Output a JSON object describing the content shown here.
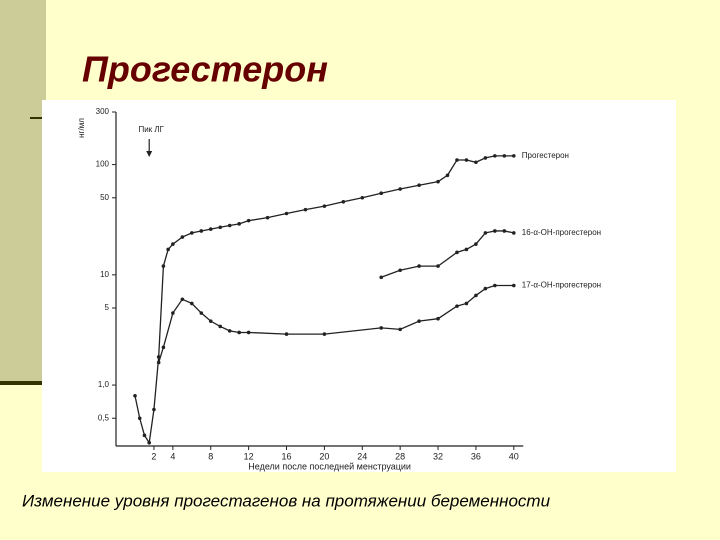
{
  "slide": {
    "title": "Прогестерон",
    "caption": "Изменение уровня прогестагенов на протяжении беременности"
  },
  "chart_data": {
    "type": "line",
    "y_label": "нг/мл",
    "x_label": "Недели после последней менструации",
    "annotation": {
      "text": "Пик ЛГ",
      "x": 1.5
    },
    "yscale": "log",
    "ylim": [
      0.28,
      300
    ],
    "yticks": [
      300,
      100,
      50,
      10,
      5,
      {
        "value": 1,
        "label": "1,0"
      },
      {
        "value": 0.5,
        "label": "0,5"
      }
    ],
    "xlim": [
      0,
      41
    ],
    "xticks": [
      2,
      4,
      8,
      12,
      16,
      20,
      24,
      28,
      32,
      36,
      40
    ],
    "series": [
      {
        "name": "Прогестерон",
        "color": "#222222",
        "x": [
          0,
          0.5,
          1,
          1.5,
          2,
          2.5,
          3,
          3.5,
          4,
          5,
          6,
          7,
          8,
          9,
          10,
          11,
          12,
          14,
          16,
          18,
          20,
          22,
          24,
          26,
          28,
          30,
          32,
          33,
          34,
          35,
          36,
          37,
          38,
          39,
          40
        ],
        "values": [
          0.8,
          0.5,
          0.35,
          0.3,
          0.6,
          1.8,
          12,
          17,
          19,
          22,
          24,
          25,
          26,
          27,
          28,
          29,
          31,
          33,
          36,
          39,
          42,
          46,
          50,
          55,
          60,
          65,
          70,
          80,
          110,
          110,
          105,
          115,
          120,
          120,
          120
        ]
      },
      {
        "name": "16-α-ОН-прогестерон",
        "color": "#222222",
        "x": [
          26,
          28,
          30,
          32,
          34,
          35,
          36,
          37,
          38,
          39,
          40
        ],
        "values": [
          9.5,
          11,
          12,
          12,
          16,
          17,
          19,
          24,
          25,
          25,
          24
        ]
      },
      {
        "name": "17-α-ОН-прогестерон",
        "color": "#222222",
        "x": [
          2.5,
          3,
          4,
          5,
          6,
          7,
          8,
          9,
          10,
          11,
          12,
          16,
          20,
          26,
          28,
          30,
          32,
          34,
          35,
          36,
          37,
          38,
          40
        ],
        "values": [
          1.6,
          2.2,
          4.5,
          6,
          5.5,
          4.5,
          3.8,
          3.4,
          3.1,
          3.0,
          3.0,
          2.9,
          2.9,
          3.3,
          3.2,
          3.8,
          4.0,
          5.2,
          5.5,
          6.5,
          7.5,
          8,
          8
        ]
      }
    ]
  }
}
